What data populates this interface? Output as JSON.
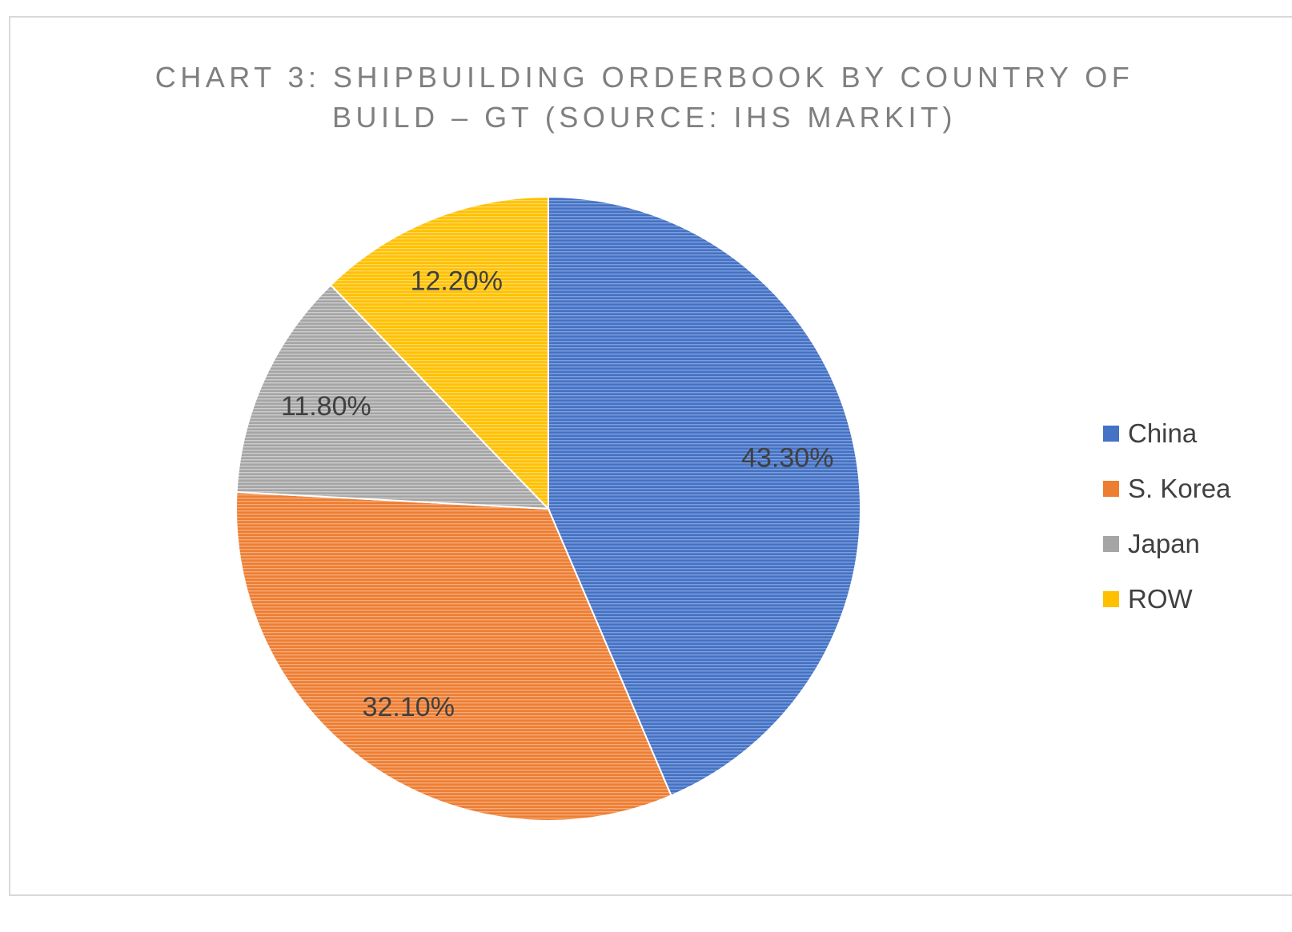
{
  "chart_data": {
    "type": "pie",
    "title_lines": [
      "CHART 3: SHIPBUILDING ORDERBOOK BY COUNTRY OF",
      "BUILD – GT (SOURCE: IHS MARKIT)"
    ],
    "slices": [
      {
        "label": "China",
        "value": 43.3,
        "display": "43.30%",
        "color": "#4472C4",
        "stripe": "#7e9fdb"
      },
      {
        "label": "S. Korea",
        "value": 32.1,
        "display": "32.10%",
        "color": "#ED7D31",
        "stripe": "#f5ab7b"
      },
      {
        "label": "Japan",
        "value": 11.8,
        "display": "11.80%",
        "color": "#A5A5A5",
        "stripe": "#cdcdcd"
      },
      {
        "label": "ROW",
        "value": 12.2,
        "display": "12.20%",
        "color": "#FFC000",
        "stripe": "#ffd95c"
      }
    ],
    "start_angle": "12 o'clock",
    "direction": "clockwise",
    "legend_position": "right",
    "data_labels": "inside"
  }
}
